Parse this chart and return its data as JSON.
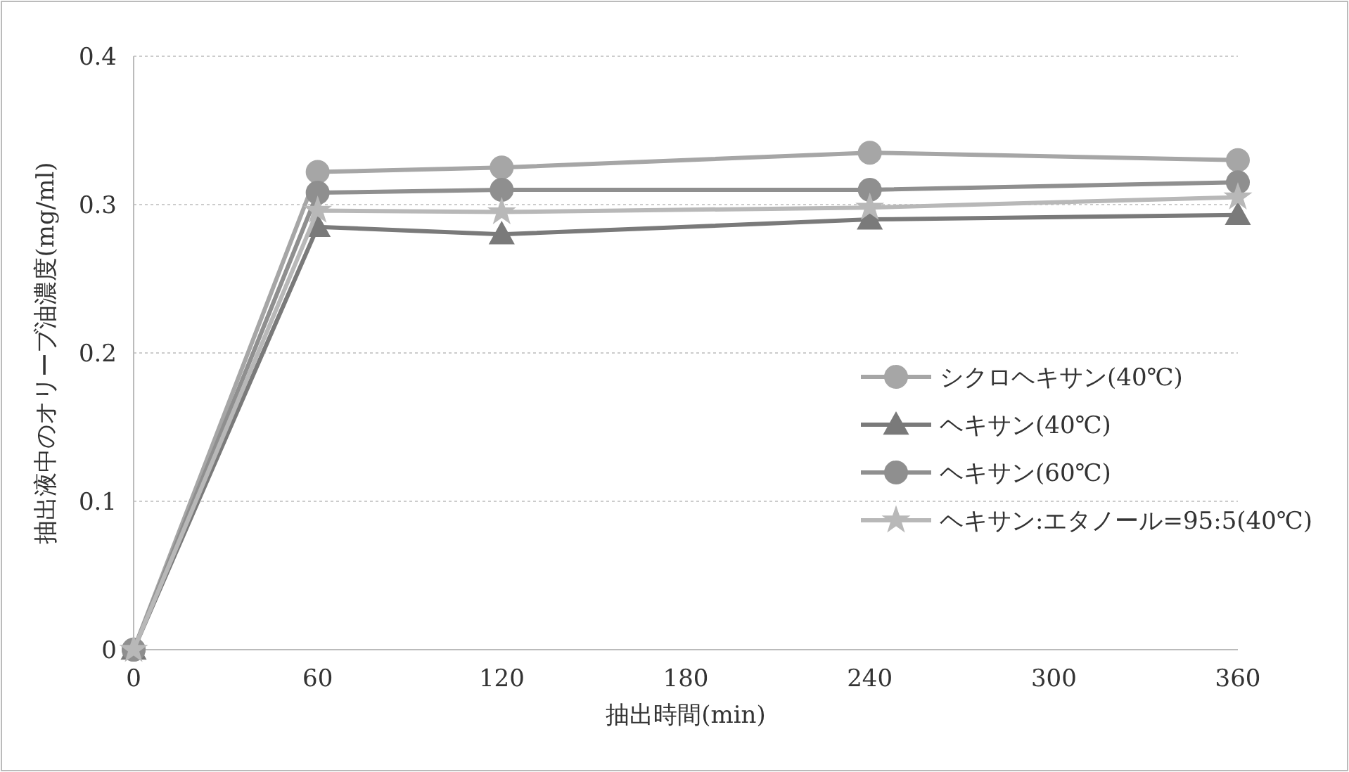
{
  "chart_data": {
    "type": "line",
    "xlabel": "抽出時間(min)",
    "ylabel": "抽出液中のオリーブ油濃度(mg/ml)",
    "x": [
      0,
      60,
      120,
      240,
      360
    ],
    "xlim": [
      0,
      360
    ],
    "xticks": [
      0,
      60,
      120,
      180,
      240,
      300,
      360
    ],
    "ylim": [
      0,
      0.4
    ],
    "yticks": [
      0,
      0.1,
      0.2,
      0.3,
      0.4
    ],
    "grid": "y",
    "legend": "right",
    "series": [
      {
        "name": "シクロヘキサン(40℃)",
        "color": "#a6a6a6",
        "marker": "circle",
        "values": [
          0,
          0.322,
          0.325,
          0.335,
          0.33
        ]
      },
      {
        "name": "ヘキサン(40℃)",
        "color": "#7a7a7a",
        "marker": "triangle",
        "values": [
          0,
          0.285,
          0.28,
          0.29,
          0.293
        ]
      },
      {
        "name": "ヘキサン(60℃)",
        "color": "#8f8f8f",
        "marker": "circle",
        "values": [
          0,
          0.308,
          0.31,
          0.31,
          0.315
        ]
      },
      {
        "name": "ヘキサン:エタノール=95:5(40℃)",
        "color": "#b8b8b8",
        "marker": "star",
        "values": [
          0,
          0.296,
          0.295,
          0.298,
          0.305
        ]
      }
    ]
  }
}
